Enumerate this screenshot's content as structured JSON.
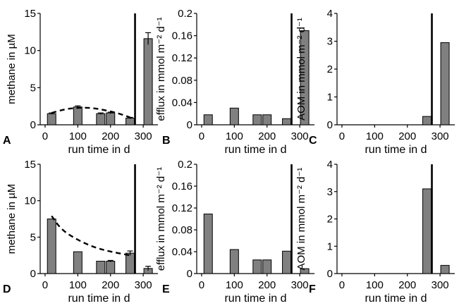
{
  "chart_data": [
    {
      "panel": "A",
      "type": "bar",
      "xlabel": "run time in d",
      "ylabel": "methane in µM",
      "xlim": [
        -15,
        345
      ],
      "xticks": [
        0,
        100,
        200,
        300
      ],
      "ylim": [
        0,
        15
      ],
      "yticks": [
        0,
        5,
        10,
        15
      ],
      "x": [
        20,
        100,
        170,
        200,
        260,
        315
      ],
      "values": [
        1.5,
        2.4,
        1.5,
        1.6,
        0.9,
        11.6
      ],
      "errors": [
        0.1,
        0.15,
        0.1,
        0.1,
        0.1,
        0.8
      ],
      "vline_x": 275,
      "trend": {
        "style": "dashed",
        "x": [
          20,
          60,
          100,
          140,
          180,
          220,
          260
        ],
        "y": [
          1.6,
          2.1,
          2.3,
          2.3,
          2.0,
          1.6,
          1.0
        ]
      }
    },
    {
      "panel": "B",
      "type": "bar",
      "xlabel": "run time in d",
      "ylabel": "efflux in mmol m⁻² d⁻¹",
      "xlim": [
        -15,
        345
      ],
      "xticks": [
        0,
        100,
        200,
        300
      ],
      "ylim": [
        0,
        0.2
      ],
      "yticks": [
        "0",
        "0.04",
        "0.08",
        "0.12",
        "0.16",
        "0.2"
      ],
      "x": [
        20,
        100,
        170,
        200,
        260,
        315
      ],
      "values": [
        0.018,
        0.03,
        0.018,
        0.018,
        0.011,
        0.169
      ],
      "vline_x": 275
    },
    {
      "panel": "C",
      "type": "bar",
      "xlabel": "run time in d",
      "ylabel": "AOM in mmol m⁻² d⁻¹",
      "xlim": [
        -15,
        345
      ],
      "xticks": [
        0,
        100,
        200,
        300
      ],
      "ylim": [
        0,
        4
      ],
      "yticks": [
        0,
        1,
        2,
        3,
        4
      ],
      "x": [
        260,
        315
      ],
      "values": [
        0.3,
        2.95
      ],
      "vline_x": 275
    },
    {
      "panel": "D",
      "type": "bar",
      "xlabel": "run time in d",
      "ylabel": "methane in µM",
      "xlim": [
        -15,
        345
      ],
      "xticks": [
        0,
        100,
        200,
        300
      ],
      "ylim": [
        0,
        15
      ],
      "yticks": [
        0,
        5,
        10,
        15
      ],
      "x": [
        20,
        100,
        170,
        200,
        260,
        315
      ],
      "values": [
        7.5,
        3.0,
        1.7,
        1.7,
        2.8,
        0.7
      ],
      "errors": [
        0,
        0,
        0,
        0.1,
        0.3,
        0.3
      ],
      "vline_x": 275,
      "trend": {
        "style": "dashed",
        "x": [
          20,
          50,
          100,
          150,
          200,
          260
        ],
        "y": [
          7.9,
          6.0,
          4.6,
          3.6,
          3.0,
          2.5
        ]
      }
    },
    {
      "panel": "E",
      "type": "bar",
      "xlabel": "run time in d",
      "ylabel": "efflux in mmol m⁻² d⁻¹",
      "xlim": [
        -15,
        345
      ],
      "xticks": [
        0,
        100,
        200,
        300
      ],
      "ylim": [
        0,
        0.2
      ],
      "yticks": [
        "0",
        "0.04",
        "0.08",
        "0.12",
        "0.16",
        "0.2"
      ],
      "x": [
        20,
        100,
        170,
        200,
        260,
        315
      ],
      "values": [
        0.109,
        0.044,
        0.025,
        0.025,
        0.041,
        0.009
      ],
      "vline_x": 275
    },
    {
      "panel": "F",
      "type": "bar",
      "xlabel": "run time in d",
      "ylabel": "AOM in mmol m⁻² d⁻¹",
      "xlim": [
        -15,
        345
      ],
      "xticks": [
        0,
        100,
        200,
        300
      ],
      "ylim": [
        0,
        4
      ],
      "yticks": [
        0,
        1,
        2,
        3,
        4
      ],
      "x": [
        260,
        315
      ],
      "values": [
        3.1,
        0.3
      ],
      "vline_x": 275
    }
  ]
}
